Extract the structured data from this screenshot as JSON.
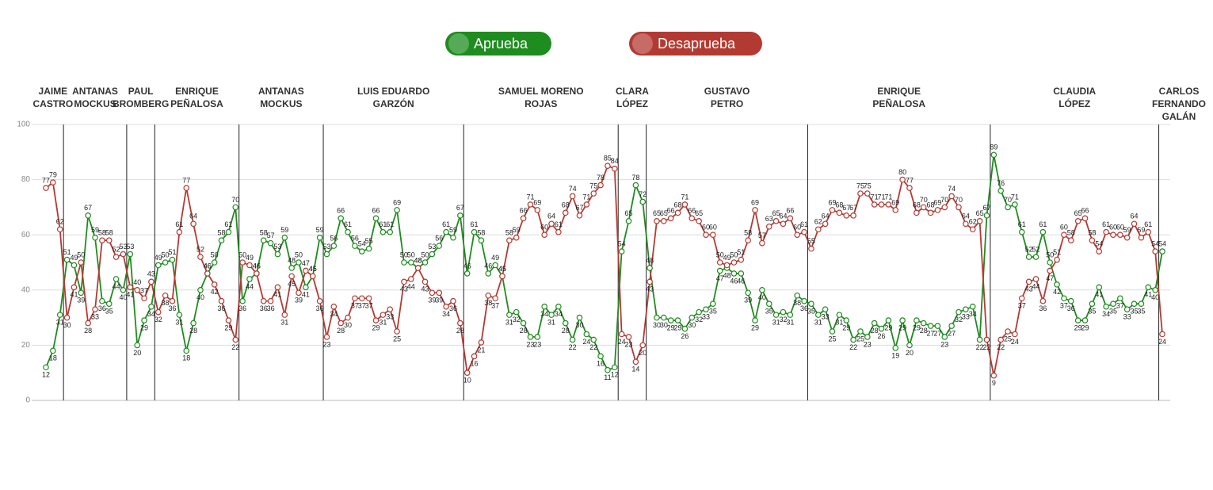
{
  "chart_data": {
    "type": "line",
    "legend": [
      "Aprueba",
      "Desaprueba"
    ],
    "segments": [
      {
        "name": [
          "JAIME",
          "CASTRO"
        ],
        "start": 0
      },
      {
        "name": [
          "ANTANAS",
          "MOCKUS"
        ],
        "start": 3
      },
      {
        "name": [
          "PAUL",
          "BROMBERG"
        ],
        "start": 12
      },
      {
        "name": [
          "ENRIQUE",
          "PEÑALOSA"
        ],
        "start": 16
      },
      {
        "name": [
          "ANTANAS",
          "MOCKUS"
        ],
        "start": 28
      },
      {
        "name": [
          "LUIS EDUARDO",
          "GARZÓN"
        ],
        "start": 40
      },
      {
        "name": [
          "SAMUEL MORENO",
          "ROJAS"
        ],
        "start": 60
      },
      {
        "name": [
          "CLARA",
          "LÓPEZ"
        ],
        "start": 82
      },
      {
        "name": [
          "GUSTAVO",
          "PETRO"
        ],
        "start": 86
      },
      {
        "name": [
          "ENRIQUE",
          "PEÑALOSA"
        ],
        "start": 109
      },
      {
        "name": [
          "CLAUDIA",
          "LÓPEZ"
        ],
        "start": 135
      },
      {
        "name": [
          "CARLOS",
          "FERNANDO",
          "GALÁN"
        ],
        "start": 159
      }
    ],
    "ylim": [
      0,
      100
    ],
    "yticks": [
      0,
      20,
      40,
      60,
      80,
      100
    ],
    "grid": true,
    "series": [
      {
        "name": "Aprueba",
        "color": "#1e8c1e",
        "values": [
          12,
          18,
          31,
          51,
          49,
          39,
          67,
          59,
          36,
          35,
          44,
          40,
          53,
          20,
          29,
          34,
          49,
          50,
          51,
          31,
          18,
          28,
          40,
          46,
          50,
          58,
          61,
          70,
          36,
          44,
          46,
          58,
          57,
          53,
          59,
          48,
          50,
          41,
          45,
          59,
          53,
          56,
          66,
          61,
          56,
          54,
          55,
          66,
          61,
          61,
          69,
          50,
          50,
          48,
          50,
          53,
          56,
          61,
          59,
          67,
          46,
          61,
          58,
          46,
          49,
          45,
          31,
          32,
          28,
          23,
          23,
          34,
          31,
          34,
          28,
          22,
          30,
          24,
          22,
          16,
          11,
          12,
          54,
          65,
          78,
          72,
          48,
          30,
          30,
          29,
          29,
          26,
          30,
          32,
          33,
          35,
          47,
          48,
          46,
          46,
          39,
          29,
          40,
          35,
          31,
          32,
          31,
          38,
          36,
          35,
          31,
          33,
          25,
          31,
          29,
          22,
          25,
          23,
          28,
          26,
          29,
          19,
          29,
          20,
          29,
          28,
          27,
          27,
          23,
          27,
          32,
          33,
          34,
          22,
          67,
          89,
          76,
          70,
          71,
          61,
          52,
          52,
          61,
          50,
          42,
          37,
          36,
          29,
          29,
          35,
          41,
          34,
          35,
          37,
          33,
          35,
          35,
          41,
          40,
          54
        ]
      },
      {
        "name": "Desaprueba",
        "color": "#b33a32",
        "values": [
          77,
          79,
          62,
          30,
          41,
          50,
          28,
          33,
          58,
          58,
          52,
          53,
          41,
          40,
          37,
          43,
          32,
          38,
          36,
          61,
          77,
          64,
          52,
          46,
          42,
          36,
          29,
          22,
          50,
          49,
          46,
          36,
          36,
          41,
          31,
          45,
          39,
          47,
          45,
          36,
          23,
          34,
          28,
          30,
          37,
          37,
          37,
          29,
          31,
          33,
          25,
          43,
          44,
          48,
          43,
          39,
          39,
          34,
          36,
          28,
          10,
          16,
          21,
          38,
          37,
          45,
          58,
          59,
          66,
          71,
          69,
          60,
          64,
          61,
          68,
          74,
          67,
          71,
          75,
          78,
          85,
          84,
          24,
          23,
          14,
          20,
          43,
          65,
          65,
          66,
          68,
          71,
          66,
          65,
          60,
          60,
          50,
          49,
          50,
          51,
          58,
          69,
          57,
          63,
          65,
          64,
          66,
          60,
          61,
          55,
          62,
          64,
          69,
          68,
          67,
          67,
          75,
          75,
          71,
          71,
          71,
          69,
          80,
          77,
          68,
          70,
          68,
          69,
          70,
          74,
          70,
          64,
          62,
          65,
          22,
          9,
          22,
          25,
          24,
          37,
          43,
          44,
          36,
          47,
          51,
          60,
          58,
          65,
          66,
          58,
          54,
          61,
          60,
          60,
          59,
          64,
          59,
          61,
          54,
          24
        ]
      }
    ]
  }
}
